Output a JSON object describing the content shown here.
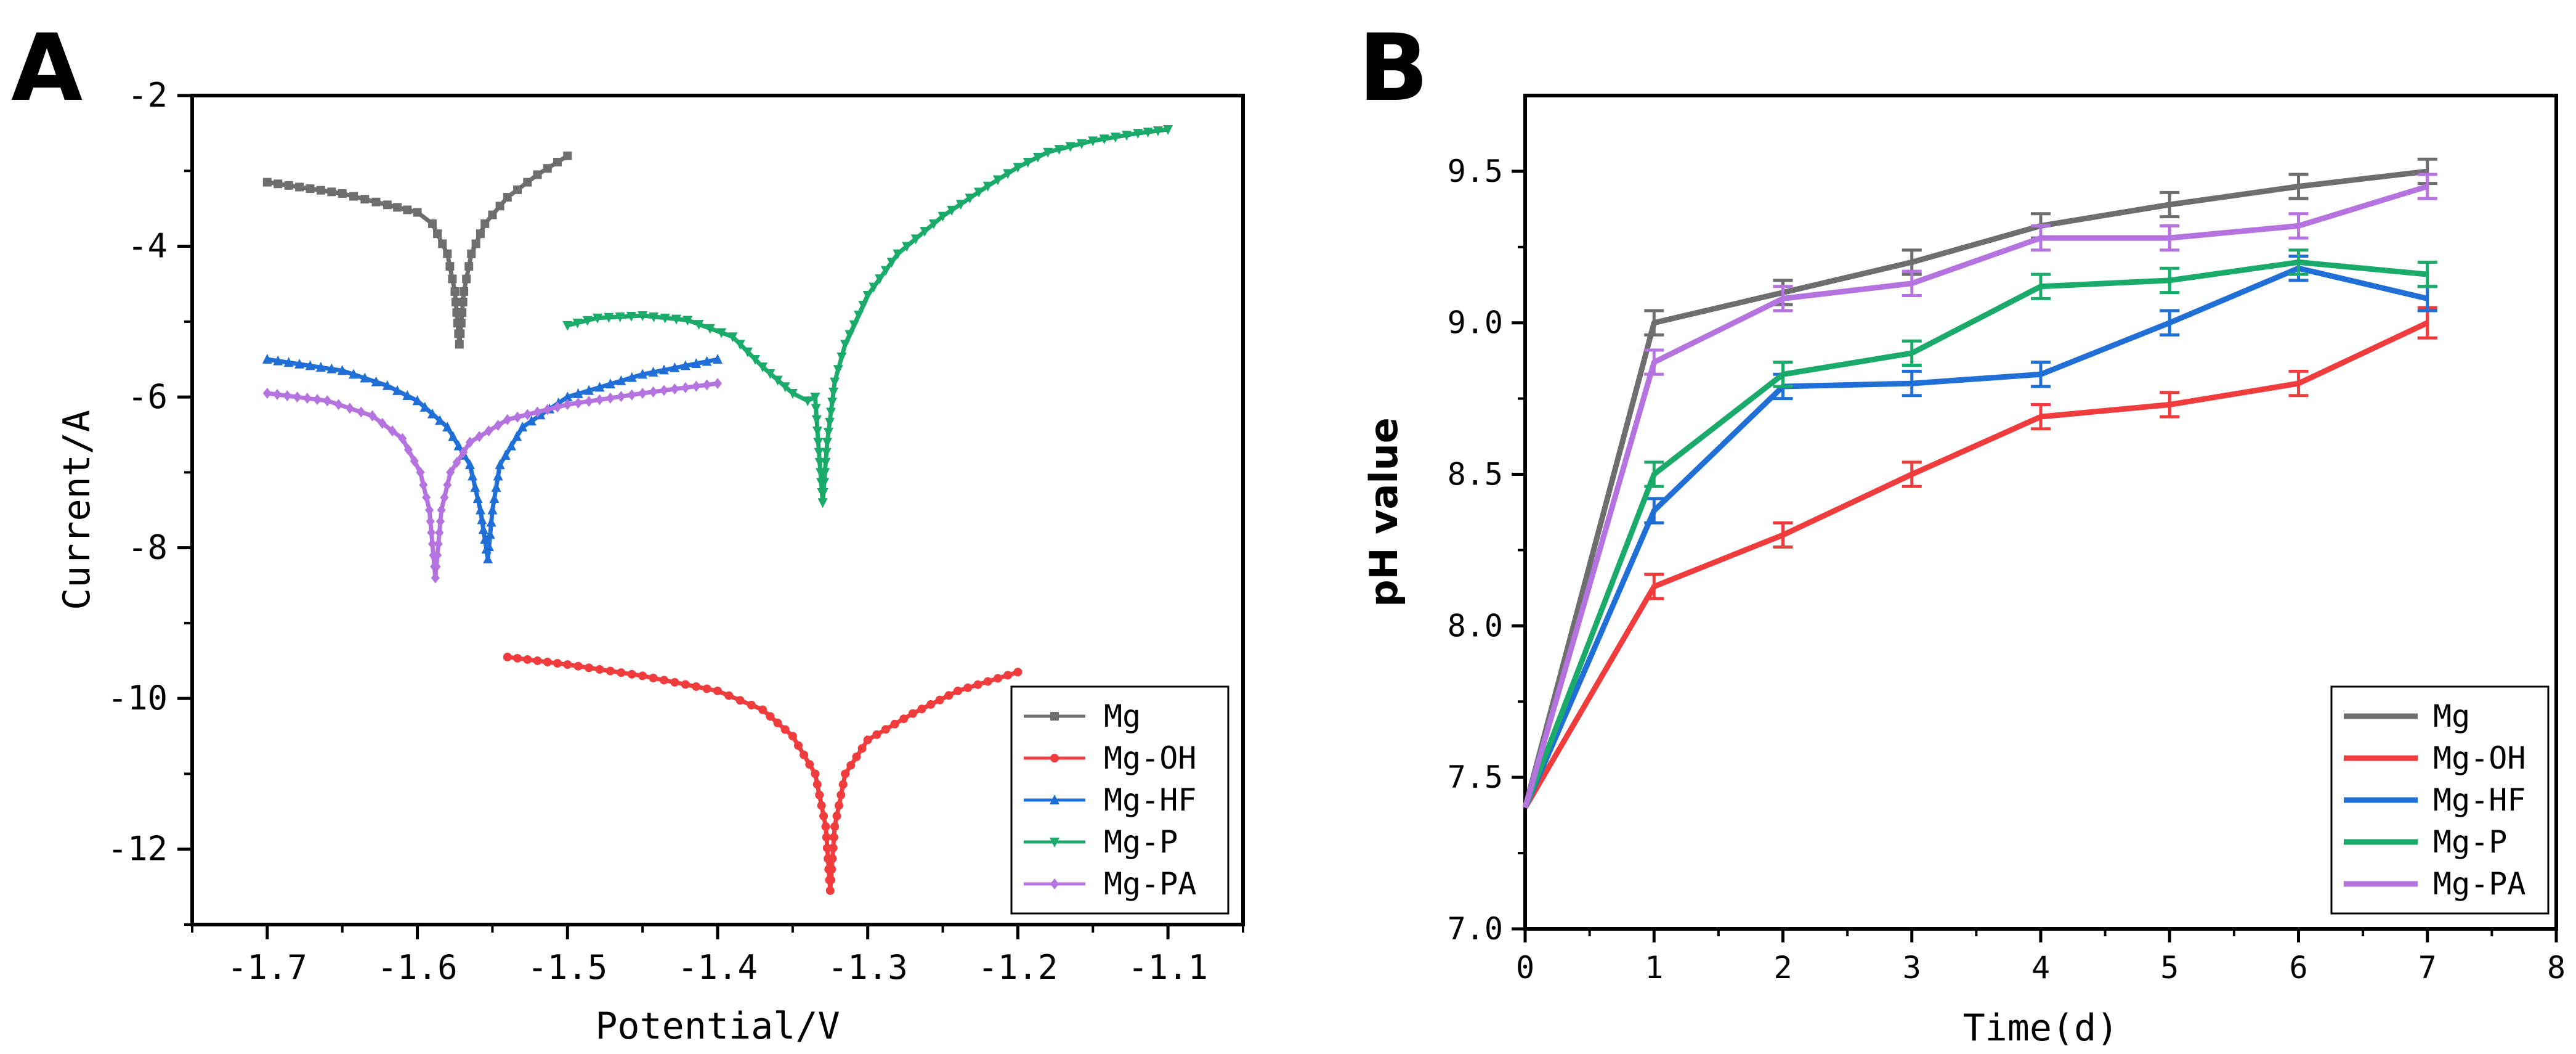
{
  "panels": {
    "a_label": "A",
    "b_label": "B"
  },
  "chart_data": [
    {
      "type": "line",
      "panel": "A",
      "xlabel": "Potential/V",
      "ylabel": "Current/A",
      "xlim": [
        -1.75,
        -1.05
      ],
      "ylim": [
        -13,
        -2
      ],
      "x_ticks": [
        {
          "value": -1.7,
          "label": "-1.7"
        },
        {
          "value": -1.6,
          "label": "-1.6"
        },
        {
          "value": -1.5,
          "label": "-1.5"
        },
        {
          "value": -1.4,
          "label": "-1.4"
        },
        {
          "value": -1.3,
          "label": "-1.3"
        },
        {
          "value": -1.2,
          "label": "-1.2"
        },
        {
          "value": -1.1,
          "label": "-1.1"
        }
      ],
      "y_ticks": [
        {
          "value": -2,
          "label": "-2"
        },
        {
          "value": -4,
          "label": "-4"
        },
        {
          "value": -6,
          "label": "-6"
        },
        {
          "value": -8,
          "label": "-8"
        },
        {
          "value": -10,
          "label": "-10"
        },
        {
          "value": -12,
          "label": "-12"
        }
      ],
      "legend_position": "bottom-right",
      "series": [
        {
          "name": "Mg",
          "color": "#6e6e6e",
          "marker": "square",
          "points": [
            [
              -1.7,
              -3.15
            ],
            [
              -1.65,
              -3.3
            ],
            [
              -1.62,
              -3.45
            ],
            [
              -1.6,
              -3.55
            ],
            [
              -1.59,
              -3.7
            ],
            [
              -1.58,
              -4.1
            ],
            [
              -1.575,
              -4.6
            ],
            [
              -1.572,
              -5.3
            ],
            [
              -1.569,
              -4.6
            ],
            [
              -1.564,
              -4.1
            ],
            [
              -1.555,
              -3.7
            ],
            [
              -1.54,
              -3.35
            ],
            [
              -1.52,
              -3.05
            ],
            [
              -1.5,
              -2.8
            ]
          ]
        },
        {
          "name": "Mg-OH",
          "color": "#f03c3c",
          "marker": "circle",
          "points": [
            [
              -1.54,
              -9.45
            ],
            [
              -1.5,
              -9.55
            ],
            [
              -1.45,
              -9.7
            ],
            [
              -1.4,
              -9.9
            ],
            [
              -1.37,
              -10.15
            ],
            [
              -1.35,
              -10.5
            ],
            [
              -1.335,
              -11.0
            ],
            [
              -1.328,
              -11.7
            ],
            [
              -1.325,
              -12.55
            ],
            [
              -1.322,
              -11.7
            ],
            [
              -1.315,
              -11.0
            ],
            [
              -1.3,
              -10.55
            ],
            [
              -1.27,
              -10.2
            ],
            [
              -1.24,
              -9.9
            ],
            [
              -1.2,
              -9.65
            ]
          ]
        },
        {
          "name": "Mg-HF",
          "color": "#1f6fd6",
          "marker": "triangle-up",
          "points": [
            [
              -1.7,
              -5.5
            ],
            [
              -1.65,
              -5.65
            ],
            [
              -1.62,
              -5.85
            ],
            [
              -1.6,
              -6.05
            ],
            [
              -1.58,
              -6.4
            ],
            [
              -1.565,
              -6.9
            ],
            [
              -1.558,
              -7.5
            ],
            [
              -1.553,
              -8.15
            ],
            [
              -1.55,
              -7.5
            ],
            [
              -1.545,
              -6.9
            ],
            [
              -1.53,
              -6.4
            ],
            [
              -1.5,
              -6.0
            ],
            [
              -1.45,
              -5.7
            ],
            [
              -1.4,
              -5.5
            ]
          ]
        },
        {
          "name": "Mg-P",
          "color": "#1aaa6a",
          "marker": "triangle-down",
          "points": [
            [
              -1.5,
              -5.05
            ],
            [
              -1.48,
              -4.95
            ],
            [
              -1.45,
              -4.92
            ],
            [
              -1.42,
              -4.98
            ],
            [
              -1.39,
              -5.2
            ],
            [
              -1.37,
              -5.6
            ],
            [
              -1.35,
              -5.95
            ],
            [
              -1.34,
              -6.05
            ],
            [
              -1.335,
              -6.0
            ],
            [
              -1.333,
              -6.6
            ],
            [
              -1.33,
              -7.4
            ],
            [
              -1.327,
              -6.6
            ],
            [
              -1.322,
              -5.8
            ],
            [
              -1.315,
              -5.3
            ],
            [
              -1.3,
              -4.65
            ],
            [
              -1.28,
              -4.1
            ],
            [
              -1.25,
              -3.6
            ],
            [
              -1.22,
              -3.2
            ],
            [
              -1.2,
              -2.95
            ],
            [
              -1.18,
              -2.75
            ],
            [
              -1.15,
              -2.6
            ],
            [
              -1.12,
              -2.5
            ],
            [
              -1.1,
              -2.45
            ]
          ]
        },
        {
          "name": "Mg-PA",
          "color": "#b573e0",
          "marker": "diamond",
          "points": [
            [
              -1.7,
              -5.95
            ],
            [
              -1.66,
              -6.05
            ],
            [
              -1.63,
              -6.25
            ],
            [
              -1.61,
              -6.55
            ],
            [
              -1.598,
              -7.0
            ],
            [
              -1.592,
              -7.5
            ],
            [
              -1.588,
              -8.4
            ],
            [
              -1.584,
              -7.5
            ],
            [
              -1.578,
              -7.0
            ],
            [
              -1.565,
              -6.6
            ],
            [
              -1.54,
              -6.3
            ],
            [
              -1.5,
              -6.1
            ],
            [
              -1.45,
              -5.95
            ],
            [
              -1.4,
              -5.82
            ]
          ]
        }
      ]
    },
    {
      "type": "line",
      "panel": "B",
      "xlabel": "Time(d)",
      "ylabel": "pH value",
      "xlim": [
        0,
        8
      ],
      "ylim": [
        7.0,
        9.75
      ],
      "x_ticks": [
        {
          "value": 0,
          "label": "0"
        },
        {
          "value": 1,
          "label": "1"
        },
        {
          "value": 2,
          "label": "2"
        },
        {
          "value": 3,
          "label": "3"
        },
        {
          "value": 4,
          "label": "4"
        },
        {
          "value": 5,
          "label": "5"
        },
        {
          "value": 6,
          "label": "6"
        },
        {
          "value": 7,
          "label": "7"
        },
        {
          "value": 8,
          "label": "8"
        }
      ],
      "y_ticks": [
        {
          "value": 7.0,
          "label": "7.0"
        },
        {
          "value": 7.5,
          "label": "7.5"
        },
        {
          "value": 8.0,
          "label": "8.0"
        },
        {
          "value": 8.5,
          "label": "8.5"
        },
        {
          "value": 9.0,
          "label": "9.0"
        },
        {
          "value": 9.5,
          "label": "9.5"
        }
      ],
      "legend_position": "bottom-right",
      "x": [
        0,
        1,
        2,
        3,
        4,
        5,
        6,
        7
      ],
      "series": [
        {
          "name": "Mg",
          "color": "#6e6e6e",
          "values": [
            7.4,
            9.0,
            9.1,
            9.2,
            9.32,
            9.39,
            9.45,
            9.5
          ],
          "errors": [
            0,
            0.04,
            0.04,
            0.04,
            0.04,
            0.04,
            0.04,
            0.04
          ]
        },
        {
          "name": "Mg-OH",
          "color": "#f03c3c",
          "values": [
            7.4,
            8.13,
            8.3,
            8.5,
            8.69,
            8.73,
            8.8,
            9.0
          ],
          "errors": [
            0,
            0.04,
            0.04,
            0.04,
            0.04,
            0.04,
            0.04,
            0.05
          ]
        },
        {
          "name": "Mg-HF",
          "color": "#1f6fd6",
          "values": [
            7.4,
            8.38,
            8.79,
            8.8,
            8.83,
            9.0,
            9.18,
            9.08
          ],
          "errors": [
            0,
            0.04,
            0.04,
            0.04,
            0.04,
            0.04,
            0.04,
            0.04
          ]
        },
        {
          "name": "Mg-P",
          "color": "#1aaa6a",
          "values": [
            7.4,
            8.5,
            8.83,
            8.9,
            9.12,
            9.14,
            9.2,
            9.16
          ],
          "errors": [
            0,
            0.04,
            0.04,
            0.04,
            0.04,
            0.04,
            0.04,
            0.04
          ]
        },
        {
          "name": "Mg-PA",
          "color": "#b573e0",
          "values": [
            7.4,
            8.87,
            9.08,
            9.13,
            9.28,
            9.28,
            9.32,
            9.45
          ],
          "errors": [
            0,
            0.04,
            0.04,
            0.04,
            0.04,
            0.04,
            0.04,
            0.04
          ]
        }
      ]
    }
  ]
}
